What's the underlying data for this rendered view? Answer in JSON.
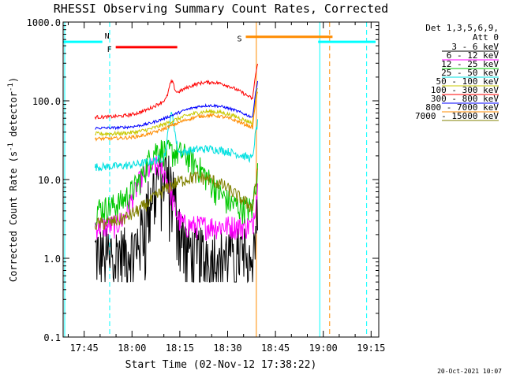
{
  "chart_data": {
    "type": "line",
    "title": "RHESSI Observing Summary Count Rates, Corrected",
    "xlabel": "Start Time (02-Nov-12 17:38:22)",
    "ylabel_main": "Corrected Count Rate (s",
    "ylabel_sup": "-1",
    "ylabel_mid": " detector",
    "ylabel_sup2": "-1",
    "ylabel_end": ")",
    "y_scale": "log",
    "ylim": [
      0.1,
      1000
    ],
    "xlim_minutes_after_start": [
      0,
      99
    ],
    "x_start_time": "17:38:22",
    "x_ticks": [
      {
        "label": "17:45",
        "t": 6.6
      },
      {
        "label": "18:00",
        "t": 21.6
      },
      {
        "label": "18:15",
        "t": 36.6
      },
      {
        "label": "18:30",
        "t": 51.6
      },
      {
        "label": "18:45",
        "t": 66.6
      },
      {
        "label": "19:00",
        "t": 81.6
      },
      {
        "label": "19:15",
        "t": 96.6
      }
    ],
    "y_ticks": [
      {
        "label": "1000.0",
        "v": 1000
      },
      {
        "label": "100.0",
        "v": 100
      },
      {
        "label": "10.0",
        "v": 10
      },
      {
        "label": "1.0",
        "v": 1
      },
      {
        "label": "0.1",
        "v": 0.1
      }
    ],
    "legend_header": [
      "Det 1,3,5,6,9,",
      "Att 0"
    ],
    "legend_position": "top-right",
    "series": [
      {
        "name": "3 - 6 keV",
        "color": "#000000",
        "base": 1.3,
        "noise": 0.9,
        "bumps": [
          [
            30,
            4,
            8
          ],
          [
            33,
            3,
            6
          ]
        ],
        "spiky": true
      },
      {
        "name": "6 - 12 keV",
        "color": "#ff00ff",
        "base": 2.6,
        "noise": 0.35,
        "bumps": [
          [
            27,
            5,
            10
          ],
          [
            31,
            3,
            6
          ]
        ]
      },
      {
        "name": "12 - 25 keV",
        "color": "#00c800",
        "base": 4.3,
        "noise": 0.4,
        "bumps": [
          [
            35,
            10,
            18
          ],
          [
            29,
            3,
            7
          ]
        ]
      },
      {
        "name": "25 - 50 keV",
        "color": "#00e0e0",
        "base": 14.5,
        "noise": 0.12,
        "bumps": [
          [
            45,
            15,
            10
          ],
          [
            34,
            1.2,
            45
          ]
        ]
      },
      {
        "name": "50 - 100 keV",
        "color": "#c8c800",
        "base": 38,
        "noise": 0.06,
        "bumps": [
          [
            46,
            14,
            35
          ]
        ]
      },
      {
        "name": "100 - 300 keV",
        "color": "#ff0000",
        "base": 62,
        "noise": 0.05,
        "bumps": [
          [
            46,
            14,
            110
          ],
          [
            34,
            1.0,
            60
          ]
        ]
      },
      {
        "name": "300 - 800 keV",
        "color": "#0000ff",
        "base": 45,
        "noise": 0.04,
        "bumps": [
          [
            46,
            14,
            42
          ]
        ]
      },
      {
        "name": "800 - 7000 keV",
        "color": "#ff8c00",
        "base": 33,
        "noise": 0.05,
        "bumps": [
          [
            46,
            14,
            32
          ]
        ]
      },
      {
        "name": "7000 - 15000 keV",
        "color": "#808000",
        "base": 2.7,
        "noise": 0.2,
        "bumps": [
          [
            42,
            14,
            8
          ]
        ]
      }
    ],
    "flags": [
      {
        "label": "N",
        "color": "#00ffff",
        "segments": [
          [
            0,
            12.3
          ],
          [
            80,
            98
          ]
        ],
        "level": 560
      },
      {
        "label": "F",
        "color": "#ff0000",
        "segments": [
          [
            16.5,
            35.8
          ]
        ],
        "level": 480
      },
      {
        "label": "S",
        "color": "#ff8c00",
        "segments": [
          [
            57.3,
            84.5
          ]
        ],
        "level": 650
      }
    ],
    "markers": [
      {
        "color": "#00ffff",
        "style": "dashed",
        "t": 14.6
      },
      {
        "color": "#00ffff",
        "style": "solid",
        "t": 0.5
      },
      {
        "color": "#ff8c00",
        "style": "solid",
        "t": 60.6
      },
      {
        "color": "#00ffff",
        "style": "solid",
        "t": 80.5
      },
      {
        "color": "#ff8c00",
        "style": "dashed",
        "t": 83.6
      },
      {
        "color": "#00ffff",
        "style": "dashed",
        "t": 95.2
      }
    ],
    "data_start": 10.0,
    "data_end": 61.0,
    "footer": "20-Oct-2021 10:07"
  }
}
